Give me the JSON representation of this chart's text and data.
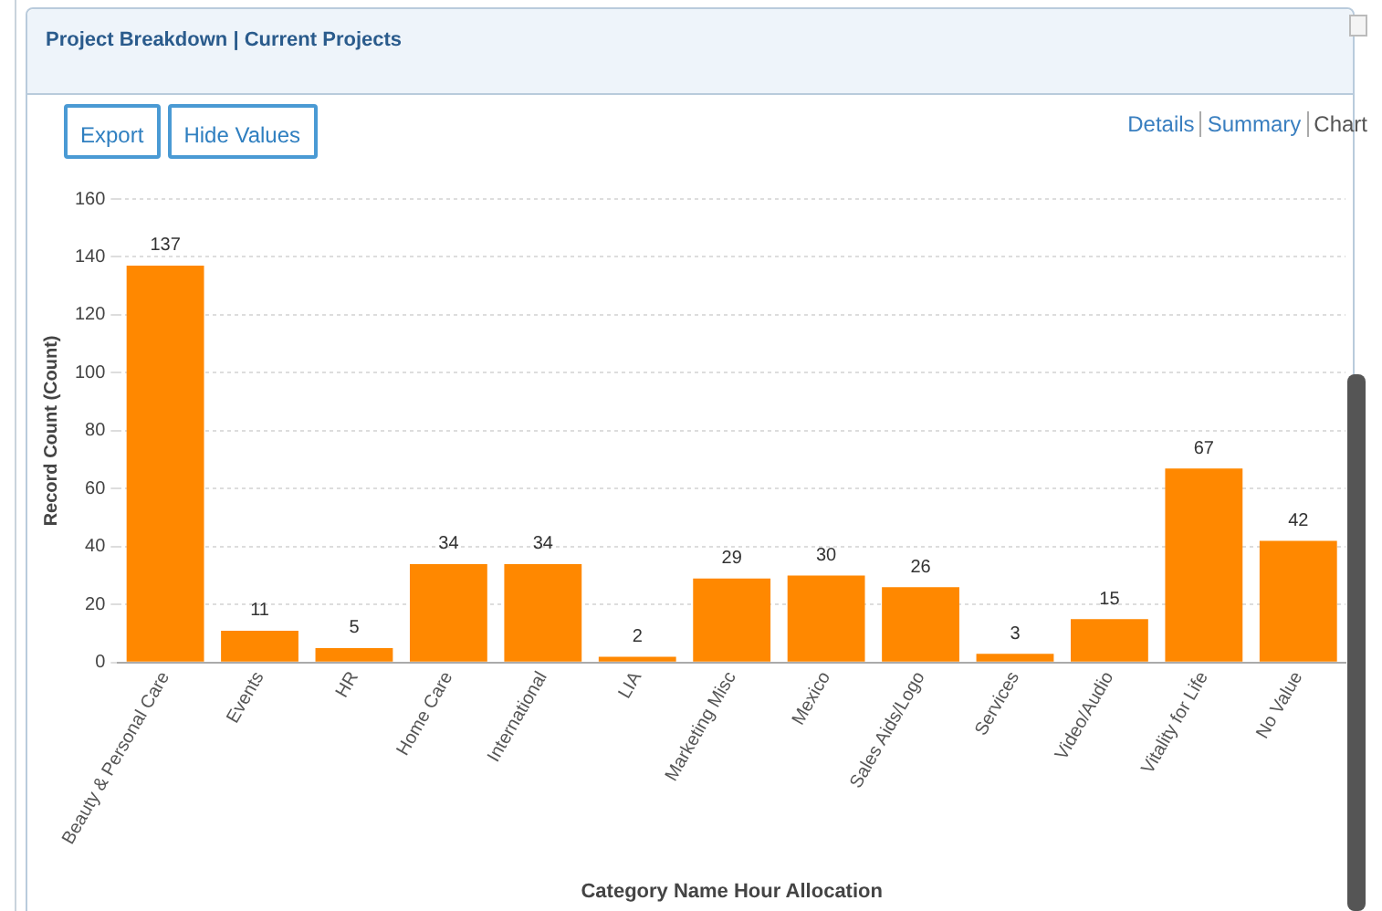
{
  "chart_data": {
    "type": "bar",
    "title": "Project Breakdown | Current Projects",
    "annotations": [
      "Export",
      "Hide Values",
      "Details",
      "Summary",
      "Chart"
    ],
    "xlabel": "Category Name Hour Allocation",
    "ylabel": "Record Count (Count)",
    "categories": [
      "Beauty & Personal Care",
      "Events",
      "HR",
      "Home Care",
      "International",
      "LIA",
      "Marketing Misc",
      "Mexico",
      "Sales Aids/Logo",
      "Services",
      "Video/Audio",
      "Vitality for Life",
      "No Value"
    ],
    "values": [
      137,
      11,
      5,
      34,
      34,
      2,
      29,
      30,
      26,
      3,
      15,
      67,
      42
    ],
    "color": "#ff8800",
    "ylim": [
      0,
      160
    ],
    "yticks": [
      0,
      20,
      40,
      60,
      80,
      100,
      120,
      140,
      160
    ],
    "grid": "y",
    "data_labels": true,
    "legend": false
  }
}
